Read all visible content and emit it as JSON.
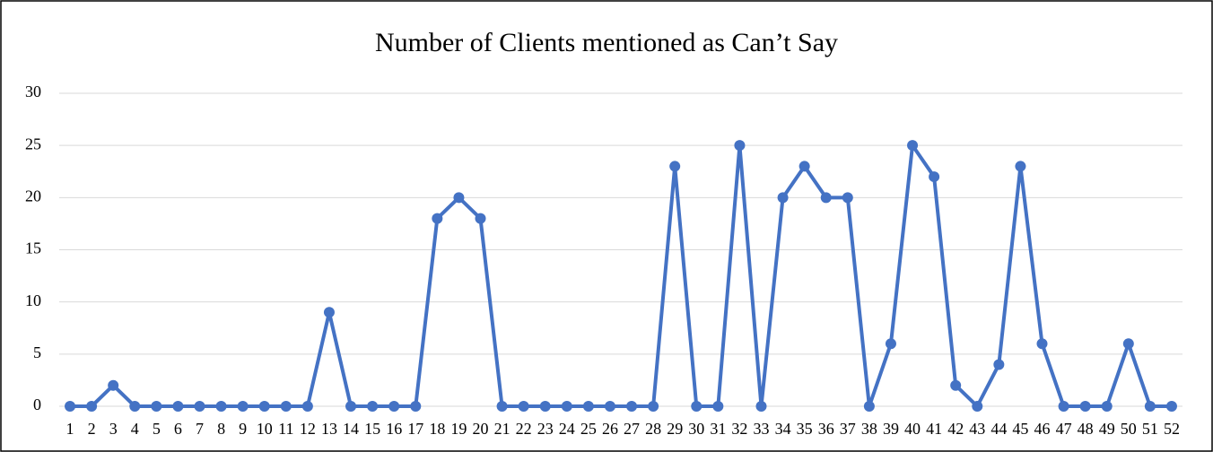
{
  "chart_data": {
    "type": "line",
    "title": "Number of Clients mentioned as Can’t Say",
    "categories": [
      "1",
      "2",
      "3",
      "4",
      "5",
      "6",
      "7",
      "8",
      "9",
      "10",
      "11",
      "12",
      "13",
      "14",
      "15",
      "16",
      "17",
      "18",
      "19",
      "20",
      "21",
      "22",
      "23",
      "24",
      "25",
      "26",
      "27",
      "28",
      "29",
      "30",
      "31",
      "32",
      "33",
      "34",
      "35",
      "36",
      "37",
      "38",
      "39",
      "40",
      "41",
      "42",
      "43",
      "44",
      "45",
      "46",
      "47",
      "48",
      "49",
      "50",
      "51",
      "52"
    ],
    "values": [
      0,
      0,
      2,
      0,
      0,
      0,
      0,
      0,
      0,
      0,
      0,
      0,
      9,
      0,
      0,
      0,
      0,
      18,
      20,
      18,
      0,
      0,
      0,
      0,
      0,
      0,
      0,
      0,
      23,
      0,
      0,
      25,
      0,
      20,
      23,
      20,
      20,
      0,
      6,
      25,
      22,
      2,
      0,
      4,
      23,
      6,
      0,
      0,
      0,
      6,
      0,
      0
    ],
    "color": "#4472c4",
    "ylim": [
      0,
      30
    ],
    "yticks": [
      0,
      5,
      10,
      15,
      20,
      25,
      30
    ],
    "grid": true
  }
}
